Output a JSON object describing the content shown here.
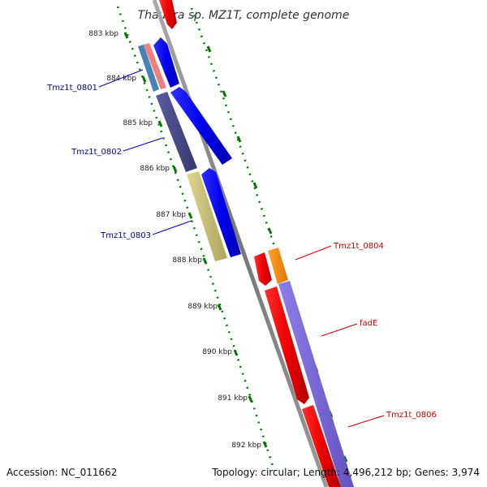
{
  "title": "Thauera sp. MZ1T, complete genome",
  "ticks": [
    "883 kbp",
    "884 kbp",
    "885 kbp",
    "886 kbp",
    "887 kbp",
    "888 kbp",
    "889 kbp",
    "890 kbp",
    "891 kbp",
    "892 kbp"
  ],
  "gene_labels": {
    "tmz1t_0801": "Tmz1t_0801",
    "tmz1t_0802": "Tmz1t_0802",
    "tmz1t_0803": "Tmz1t_0803",
    "tmz1t_0804": "Tmz1t_0804",
    "fade": "fadE",
    "tmz1t_0806": "Tmz1t_0806"
  },
  "footer": {
    "accession": "Accession: NC_011662",
    "summary": "Topology: circular; Length: 4,496,212 bp; Genes: 3,974"
  },
  "colors": {
    "forward_cds": "#0000ee",
    "reverse_cds": "#ee0000",
    "reverse_label": "#cc0000",
    "forward_label": "#00008b",
    "backbone": "#888888",
    "tick_green": "#007700",
    "slate": "#4a4a8a",
    "khaki": "#c8c27a",
    "orange": "#ff8c00",
    "lavender": "#7b68d8",
    "steelblue": "#4682b4",
    "pink": "#f08080"
  }
}
